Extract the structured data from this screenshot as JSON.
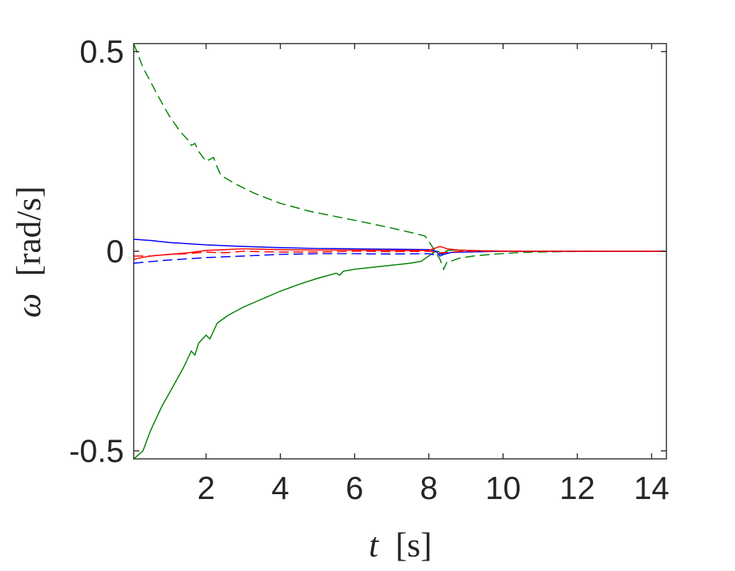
{
  "chart_data": {
    "type": "line",
    "title": "",
    "xlabel_var": "t",
    "xlabel_unit": "[s]",
    "ylabel_var": "ω",
    "ylabel_unit": "[rad/s]",
    "xlim": [
      0.05,
      14.4
    ],
    "ylim": [
      -0.52,
      0.52
    ],
    "xticks": [
      2,
      4,
      6,
      8,
      10,
      12,
      14
    ],
    "xtick_labels": [
      "2",
      "4",
      "6",
      "8",
      "10",
      "12",
      "14"
    ],
    "yticks": [
      -0.5,
      0,
      0.5
    ],
    "ytick_labels": [
      "-0.5",
      "0",
      "0.5"
    ],
    "grid": false,
    "legend": "none",
    "series": [
      {
        "color": "#008000",
        "style": "dashed",
        "x": [
          0.05,
          0.3,
          0.7,
          1.0,
          1.3,
          1.5,
          1.6,
          1.7,
          1.8,
          2.0,
          2.2,
          2.3,
          2.4,
          2.8,
          3.3,
          4.0,
          4.8,
          5.6,
          6.3,
          7.0,
          7.6,
          7.9,
          8.0,
          8.1,
          8.2,
          8.3,
          8.4,
          8.5,
          8.6,
          8.8,
          9.2,
          9.8,
          10.5,
          11.5,
          12.5,
          14.4
        ],
        "y": [
          0.52,
          0.46,
          0.39,
          0.34,
          0.3,
          0.28,
          0.265,
          0.27,
          0.25,
          0.225,
          0.235,
          0.21,
          0.19,
          0.168,
          0.145,
          0.12,
          0.1,
          0.085,
          0.072,
          0.058,
          0.045,
          0.038,
          0.025,
          0.01,
          -0.005,
          -0.02,
          -0.045,
          -0.025,
          -0.025,
          -0.018,
          -0.012,
          -0.007,
          -0.003,
          -0.001,
          0,
          0
        ]
      },
      {
        "color": "#008000",
        "style": "solid",
        "x": [
          0.05,
          0.3,
          0.5,
          0.8,
          1.1,
          1.4,
          1.5,
          1.6,
          1.7,
          1.8,
          1.9,
          2.0,
          2.1,
          2.2,
          2.3,
          2.6,
          3.0,
          3.5,
          4.0,
          4.5,
          5.0,
          5.5,
          5.6,
          5.7,
          6.0,
          6.5,
          7.0,
          7.5,
          7.8,
          8.0,
          8.15,
          8.25,
          8.35,
          8.5,
          8.7,
          9.0,
          9.5,
          10.0,
          11.0,
          12.0,
          14.4
        ],
        "y": [
          -0.52,
          -0.5,
          -0.45,
          -0.39,
          -0.34,
          -0.29,
          -0.27,
          -0.25,
          -0.26,
          -0.23,
          -0.22,
          -0.21,
          -0.22,
          -0.2,
          -0.18,
          -0.16,
          -0.14,
          -0.12,
          -0.1,
          -0.083,
          -0.068,
          -0.055,
          -0.06,
          -0.05,
          -0.045,
          -0.04,
          -0.035,
          -0.03,
          -0.025,
          -0.012,
          -0.002,
          0.0,
          -0.008,
          0.002,
          0.003,
          0.002,
          0.001,
          0,
          0,
          0,
          0
        ]
      },
      {
        "color": "#0000ff",
        "style": "solid",
        "x": [
          0.05,
          0.5,
          1.0,
          2.0,
          3.0,
          4.0,
          5.0,
          6.0,
          7.0,
          8.0,
          8.2,
          8.3,
          8.4,
          8.6,
          9.0,
          10.0,
          12.0,
          14.4
        ],
        "y": [
          0.03,
          0.027,
          0.022,
          0.016,
          0.012,
          0.009,
          0.007,
          0.006,
          0.005,
          0.004,
          0.0,
          -0.012,
          -0.008,
          -0.003,
          -0.002,
          0,
          0,
          0
        ]
      },
      {
        "color": "#0000ff",
        "style": "dashed",
        "x": [
          0.05,
          0.5,
          1.0,
          2.0,
          3.0,
          4.0,
          5.0,
          6.0,
          7.0,
          8.0,
          8.2,
          8.4,
          8.7,
          9.0,
          10.0,
          12.0,
          14.4
        ],
        "y": [
          -0.03,
          -0.026,
          -0.022,
          -0.016,
          -0.012,
          -0.008,
          -0.006,
          -0.006,
          -0.007,
          -0.006,
          -0.01,
          -0.004,
          -0.002,
          0,
          0,
          0,
          0
        ]
      },
      {
        "color": "#ff0000",
        "style": "solid",
        "x": [
          0.05,
          0.5,
          1.0,
          1.5,
          2.0,
          2.5,
          3.0,
          3.5,
          4.0,
          5.0,
          6.0,
          7.0,
          8.0,
          8.3,
          8.5,
          8.8,
          9.5,
          10.5,
          12.0,
          14.4
        ],
        "y": [
          -0.02,
          -0.012,
          -0.008,
          -0.004,
          0.002,
          0.004,
          0.006,
          0.005,
          0.004,
          0.003,
          0.003,
          0.002,
          0.002,
          0.012,
          0.006,
          0.003,
          0.001,
          0,
          0,
          0
        ]
      },
      {
        "color": "#ff0000",
        "style": "dashed",
        "x": [
          0.05,
          0.5,
          1.0,
          1.5,
          2.0,
          2.5,
          3.0,
          4.0,
          5.0,
          6.0,
          7.0,
          8.0,
          8.3,
          8.6,
          9.0,
          10.0,
          12.0,
          14.4
        ],
        "y": [
          -0.012,
          -0.012,
          -0.008,
          -0.006,
          -0.002,
          -0.004,
          0.0,
          -0.002,
          -0.002,
          0.0,
          -0.001,
          0.0,
          -0.004,
          -0.002,
          0,
          0,
          0,
          0
        ]
      }
    ]
  }
}
